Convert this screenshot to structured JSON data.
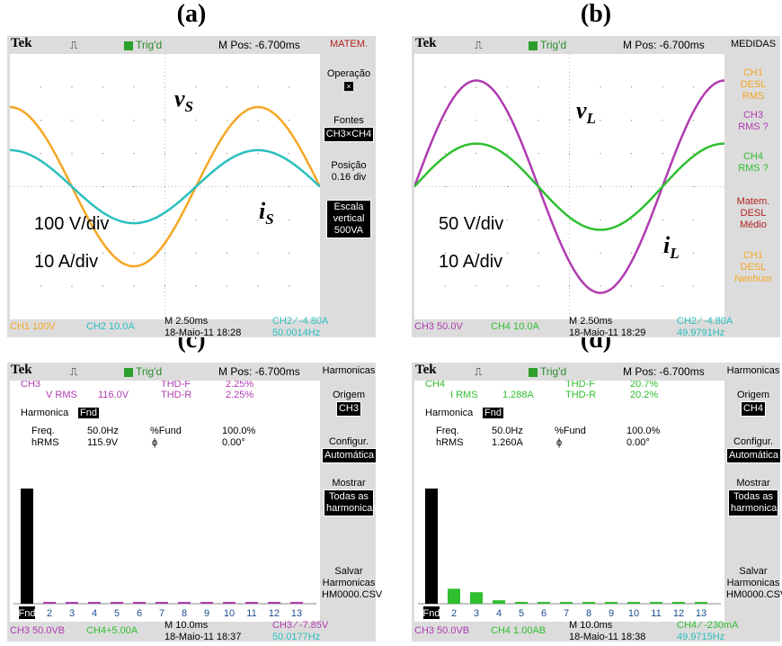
{
  "panels": [
    {
      "label": "(a)",
      "menu_title": "MATEM.",
      "menu_title_color": "#b22222",
      "menu": [
        "Operação",
        "Fontes",
        "CH3×CH4",
        "Posição",
        "0.16 div",
        "Escala vertical 500VA"
      ],
      "trig": "Trig'd",
      "mpos": "M Pos: -6.700ms",
      "scale_v": "100 V/div",
      "scale_i": "10 A/div",
      "ann_v": "v",
      "ann_v_sub": "S",
      "ann_i": "i",
      "ann_i_sub": "S",
      "bottom": {
        "ch_a": "CH1  100V",
        "ch_b": "CH2  10.0A",
        "m": "M 2.50ms",
        "trig": "CH2 ⁄ -4.80A",
        "date": "18-Maio-11 18:28",
        "freq": "50.0014Hz"
      }
    },
    {
      "label": "(b)",
      "menu_title": "MEDIDAS",
      "menu_title_color": "#000000",
      "menu": [
        "CH1 DESL RMS",
        "CH3 RMS ?",
        "CH4 RMS ?",
        "Matem. DESL Médio",
        "CH1 DESL Nenhum"
      ],
      "trig": "Trig'd",
      "mpos": "M Pos: -6.700ms",
      "scale_v": "50 V/div",
      "scale_i": "10 A/div",
      "ann_v": "v",
      "ann_v_sub": "L",
      "ann_i": "i",
      "ann_i_sub": "L",
      "bottom": {
        "ch_a": "CH3  50.0V",
        "ch_b": "CH4  10.0A",
        "m": "M 2.50ms",
        "trig": "CH2 ⁄ -4.80A",
        "date": "18-Maio-11 18:29",
        "freq": "49.9791Hz"
      }
    },
    {
      "label": "(c)",
      "menu_title": "Harmonicas",
      "menu": [
        "Origem",
        "CH3",
        "Configur.",
        "Automática",
        "Mostrar",
        "Todas as harmonicas",
        "Salvar Harmonicas HM0000.CSV"
      ],
      "trig": "Trig'd",
      "mpos": "M Pos: -6.700ms",
      "ch": "CH3",
      "rms_label": "V RMS",
      "rms_value": "116.0V",
      "thdf": "THD-F",
      "thdf_value": "2.25%",
      "thdr": "THD-R",
      "thdr_value": "2.25%",
      "harmonica": "Harmonica",
      "fnd": "Fnd",
      "freq_label": "Freq.",
      "freq_value": "50.0Hz",
      "fund_label": "%Fund",
      "fund_value": "100.0%",
      "hrms_label": "hRMS",
      "hrms_value": "115.9V",
      "phi_label": "ϕ",
      "phi_value": "0.00°",
      "bottom": {
        "ch_a": "CH3  50.0VB",
        "ch_b": "CH4+5.00A",
        "m": "M 10.0ms",
        "trig": "CH3 ⁄ -7.85V",
        "date": "18-Maio-11 18:37",
        "freq": "50.0177Hz"
      }
    },
    {
      "label": "(d)",
      "menu_title": "Harmonicas",
      "menu": [
        "Origem",
        "CH4",
        "Configur.",
        "Automática",
        "Mostrar",
        "Todas as harmonicas",
        "Salvar Harmonicas HM0000.CSV"
      ],
      "trig": "Trig'd",
      "mpos": "M Pos: -6.700ms",
      "ch": "CH4",
      "rms_label": "I RMS",
      "rms_value": "1.288A",
      "thdf": "THD-F",
      "thdf_value": "20.7%",
      "thdr": "THD-R",
      "thdr_value": "20.2%",
      "harmonica": "Harmonica",
      "fnd": "Fnd",
      "freq_label": "Freq.",
      "freq_value": "50.0Hz",
      "fund_label": "%Fund",
      "fund_value": "100.0%",
      "hrms_label": "hRMS",
      "hrms_value": "1.260A",
      "phi_label": "ϕ",
      "phi_value": "0.00°",
      "bottom": {
        "ch_a": "CH3  50.0VB",
        "ch_b": "CH4  1.00AB",
        "m": "M 10.0ms",
        "trig": "CH4 ⁄ -230mA",
        "date": "18-Maio-11 18:38",
        "freq": "49.9715Hz"
      }
    }
  ],
  "colors": {
    "ch1": "#f5a623",
    "ch2": "#2bbfbf",
    "ch3": "#b03bb0",
    "ch4": "#2fbf2f",
    "bg": "#dcdcdc"
  },
  "chart_data": [
    {
      "type": "line",
      "series": [
        {
          "name": "vS",
          "color": "#f5a623",
          "amplitude_div": 2.4,
          "phase_deg": 90
        },
        {
          "name": "iS",
          "color": "#2bbfbf",
          "amplitude_div": 1.1,
          "phase_deg": 90
        }
      ],
      "cycles": 1.25
    },
    {
      "type": "line",
      "series": [
        {
          "name": "vL",
          "color": "#b03bb0",
          "amplitude_div": 3.2,
          "phase_deg": 0
        },
        {
          "name": "iL",
          "color": "#2fbf2f",
          "amplitude_div": 1.3,
          "phase_deg": 0
        }
      ],
      "cycles": 1.25
    },
    {
      "type": "bar",
      "categories": [
        "Fnd",
        "2",
        "3",
        "4",
        "5",
        "6",
        "7",
        "8",
        "9",
        "10",
        "11",
        "12",
        "13"
      ],
      "values": [
        100,
        0.5,
        1.5,
        0.4,
        0.5,
        0.3,
        0.5,
        0.3,
        0.4,
        0.3,
        0.3,
        0.3,
        0.3
      ],
      "bar_colors": [
        "#000000",
        "#b03bb0"
      ],
      "ylim": [
        0,
        100
      ]
    },
    {
      "type": "bar",
      "categories": [
        "Fnd",
        "2",
        "3",
        "4",
        "5",
        "6",
        "7",
        "8",
        "9",
        "10",
        "11",
        "12",
        "13"
      ],
      "values": [
        100,
        13,
        10,
        3,
        1,
        0.5,
        0.5,
        0.5,
        0.5,
        0.5,
        0.5,
        0.5,
        0.5
      ],
      "bar_colors": [
        "#000000",
        "#2fbf2f"
      ],
      "ylim": [
        0,
        100
      ]
    }
  ]
}
